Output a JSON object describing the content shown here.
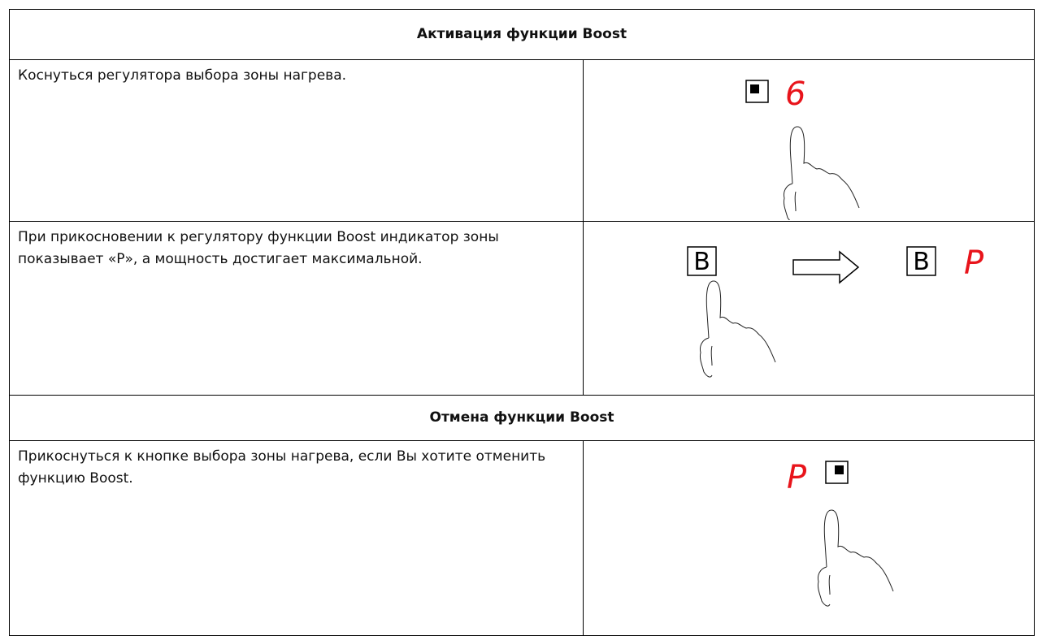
{
  "sections": [
    {
      "title": "Активация функции Boost",
      "rows": [
        {
          "text": "Коснуться регулятора выбора зоны нагрева.",
          "display": "6"
        },
        {
          "text": "При прикосновении к регулятору функции Boost индикатор зоны показывает «Р», а мощность достигает максимальной.",
          "button": "B",
          "display": "P"
        }
      ]
    },
    {
      "title": "Отмена функции Boost",
      "rows": [
        {
          "text": "Прикоснуться к кнопке выбора зоны нагрева, если Вы хотите отменить функцию Boost.",
          "display": "P"
        }
      ]
    }
  ]
}
